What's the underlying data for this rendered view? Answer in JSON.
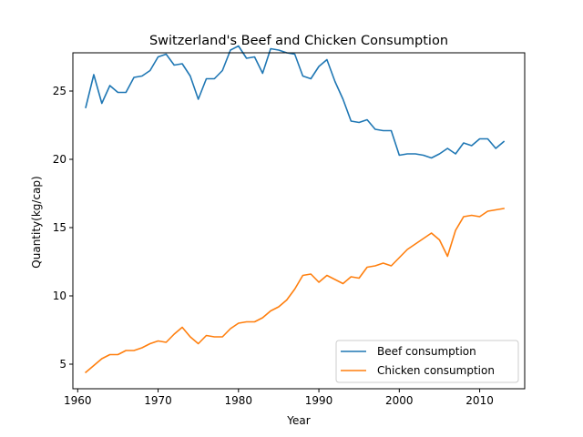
{
  "chart_data": {
    "type": "line",
    "title": "Switzerland's Beef and Chicken Consumption",
    "xlabel": "Year",
    "ylabel": "Quantity(kg/cap)",
    "xlim": [
      1959.4,
      2015.6
    ],
    "ylim": [
      3.2,
      27.8
    ],
    "xticks": [
      1960,
      1970,
      1980,
      1990,
      2000,
      2010
    ],
    "yticks": [
      5,
      10,
      15,
      20,
      25
    ],
    "grid": false,
    "legend_position": "lower-right",
    "x": [
      1961,
      1962,
      1963,
      1964,
      1965,
      1966,
      1967,
      1968,
      1969,
      1970,
      1971,
      1972,
      1973,
      1974,
      1975,
      1976,
      1977,
      1978,
      1979,
      1980,
      1981,
      1982,
      1983,
      1984,
      1985,
      1986,
      1987,
      1988,
      1989,
      1990,
      1991,
      1992,
      1993,
      1994,
      1995,
      1996,
      1997,
      1998,
      1999,
      2000,
      2001,
      2002,
      2003,
      2004,
      2005,
      2006,
      2007,
      2008,
      2009,
      2010,
      2011,
      2012,
      2013
    ],
    "series": [
      {
        "name": "Beef consumption",
        "color": "#1f77b4",
        "values": [
          23.8,
          26.2,
          24.1,
          25.4,
          24.9,
          24.9,
          26.0,
          26.1,
          26.5,
          27.5,
          27.7,
          26.9,
          27.0,
          26.1,
          24.4,
          25.9,
          25.9,
          26.5,
          28.0,
          28.3,
          27.4,
          27.5,
          26.3,
          28.1,
          28.0,
          27.8,
          27.7,
          26.1,
          25.9,
          26.8,
          27.3,
          25.7,
          24.4,
          22.8,
          22.7,
          22.9,
          22.2,
          22.1,
          22.1,
          20.3,
          20.4,
          20.4,
          20.3,
          20.1,
          20.4,
          20.8,
          20.4,
          21.2,
          21.0,
          21.5,
          21.5,
          20.8,
          21.3
        ]
      },
      {
        "name": "Chicken consumption",
        "color": "#ff7f0e",
        "values": [
          4.4,
          4.9,
          5.4,
          5.7,
          5.7,
          6.0,
          6.0,
          6.2,
          6.5,
          6.7,
          6.6,
          7.2,
          7.7,
          7.0,
          6.5,
          7.1,
          7.0,
          7.0,
          7.6,
          8.0,
          8.1,
          8.1,
          8.4,
          8.9,
          9.2,
          9.7,
          10.5,
          11.5,
          11.6,
          11.0,
          11.5,
          11.2,
          10.9,
          11.4,
          11.3,
          12.1,
          12.2,
          12.4,
          12.2,
          12.8,
          13.4,
          13.8,
          14.2,
          14.6,
          14.1,
          12.9,
          14.8,
          15.8,
          15.9,
          15.8,
          16.2,
          16.3,
          16.4
        ]
      }
    ]
  }
}
